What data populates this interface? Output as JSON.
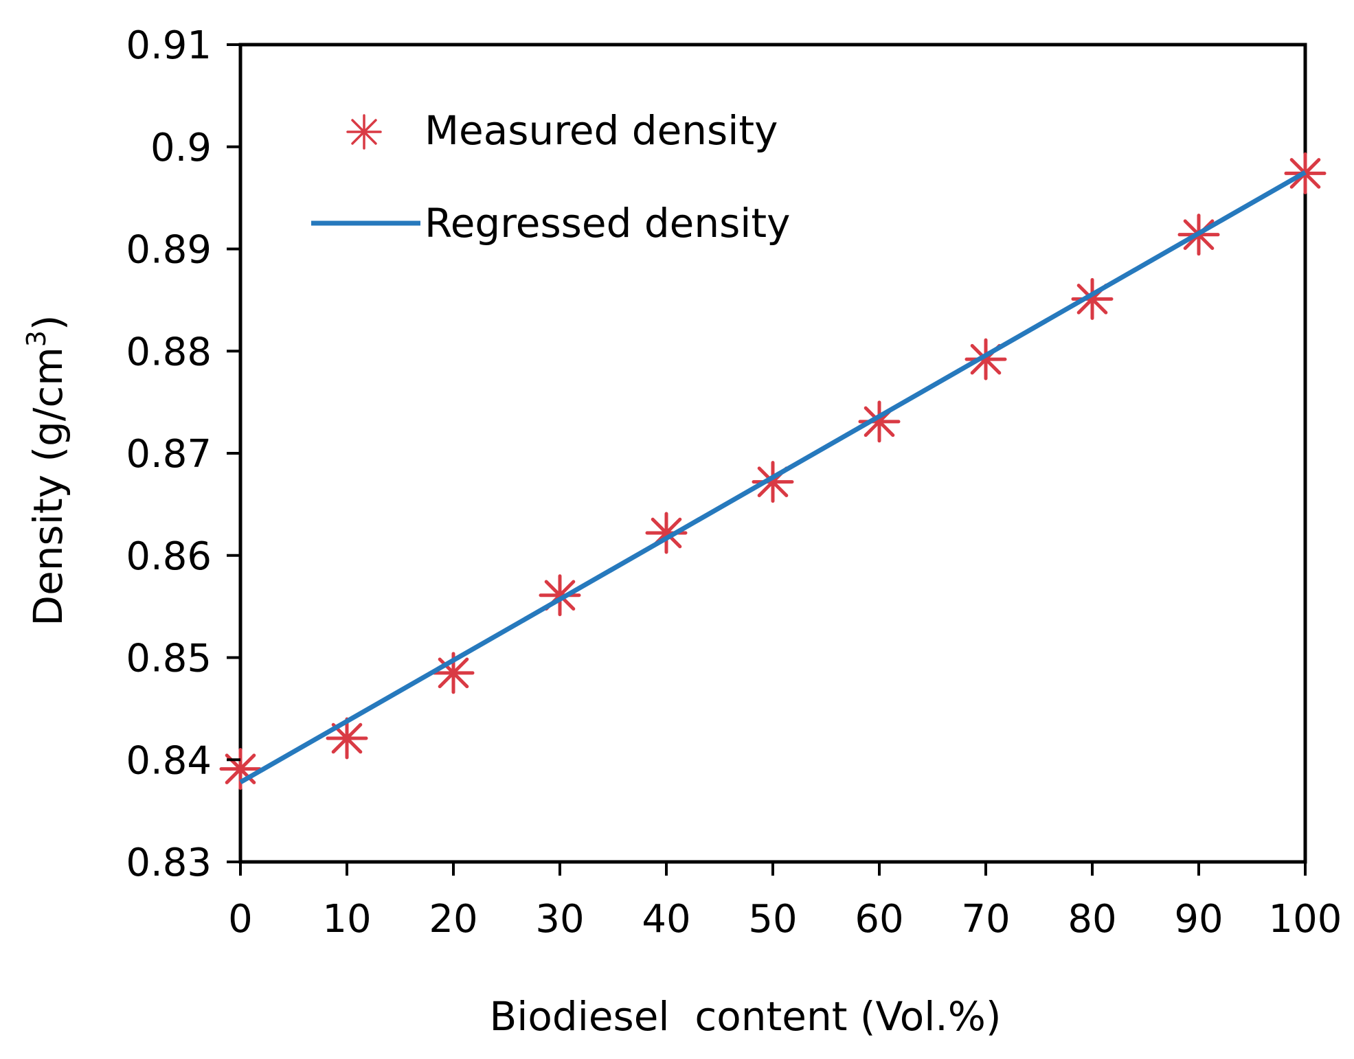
{
  "colors": {
    "measured": "#d93a44",
    "regressed": "#2679bd",
    "axis": "#000000",
    "background": "#ffffff"
  },
  "chart_data": {
    "type": "scatter",
    "title": "",
    "xlabel": "Biodiesel  content (Vol.%)",
    "ylabel": {
      "main": "Density (g/cm",
      "superscript": "3",
      "close": ")"
    },
    "xlim": [
      0,
      100
    ],
    "ylim": [
      0.83,
      0.91
    ],
    "xticks": [
      0,
      10,
      20,
      30,
      40,
      50,
      60,
      70,
      80,
      90,
      100
    ],
    "xtick_labels": [
      "0",
      "10",
      "20",
      "30",
      "40",
      "50",
      "60",
      "70",
      "80",
      "90",
      "100"
    ],
    "yticks": [
      0.83,
      0.84,
      0.85,
      0.86,
      0.87,
      0.88,
      0.89,
      0.9,
      0.91
    ],
    "ytick_labels": [
      "0.83",
      "0.84",
      "0.85",
      "0.86",
      "0.87",
      "0.88",
      "0.89",
      "0.9",
      "0.91"
    ],
    "grid": false,
    "legend_position": "top-left",
    "series": [
      {
        "name": "Measured density",
        "kind": "markers",
        "marker": "asterisk",
        "x": [
          0,
          10,
          20,
          30,
          40,
          50,
          60,
          70,
          80,
          90,
          100
        ],
        "y": [
          0.8391,
          0.8421,
          0.8485,
          0.8561,
          0.8622,
          0.8672,
          0.8731,
          0.8792,
          0.8851,
          0.8914,
          0.8974
        ]
      },
      {
        "name": "Regressed density",
        "kind": "line",
        "x": [
          0,
          100
        ],
        "y": [
          0.8378,
          0.8975
        ]
      }
    ]
  }
}
